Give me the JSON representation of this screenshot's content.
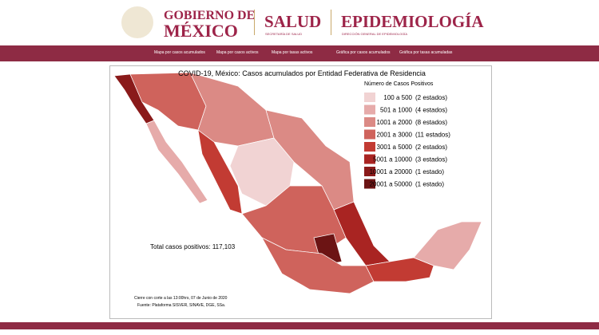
{
  "header": {
    "gobierno_top": "GOBIERNO DE",
    "gobierno_bottom": "MÉXICO",
    "salud": "SALUD",
    "salud_sub": "SECRETARÍA DE SALUD",
    "epidemiologia": "EPIDEMIOLOGÍA",
    "epidemiologia_sub": "DIRECCIÓN GENERAL DE EPIDEMIOLOGÍA"
  },
  "nav": [
    "Mapa por casos acumulados",
    "Mapa por casos activos",
    "Mapa por tasas activos",
    "Gráfica por casos acumulados",
    "Gráfica por tasas acumuladas"
  ],
  "map": {
    "title": "COVID-19, México: Casos acumulados por Entidad Federativa de Residencia",
    "legend_title": "Número de Casos Positivos",
    "legend": [
      {
        "range": "100 a 500",
        "count": "(2 estados)",
        "color": "#f1d3d3"
      },
      {
        "range": "501 a 1000",
        "count": "(4 estados)",
        "color": "#e6abaa"
      },
      {
        "range": "1001 a 2000",
        "count": "(8 estados)",
        "color": "#db8a85"
      },
      {
        "range": "2001 a 3000",
        "count": "(11 estados)",
        "color": "#cf635c"
      },
      {
        "range": "3001 a 5000",
        "count": "(2 estados)",
        "color": "#c23b33"
      },
      {
        "range": "5001 a 10000",
        "count": "(3 estados)",
        "color": "#a92422"
      },
      {
        "range": "10001 a 20000",
        "count": "(1 estado)",
        "color": "#8a1a1a"
      },
      {
        "range": "20001 a 50000",
        "count": "(1 estado)",
        "color": "#6c1414"
      }
    ],
    "total": "Total casos positivos: 117,103",
    "cutoff": "Cierre con corte a las 13:00hrs, 07 de Junio de 2020",
    "source": "Fuente: Plataforma SISVER, SINAVE, DGE, SSa."
  }
}
